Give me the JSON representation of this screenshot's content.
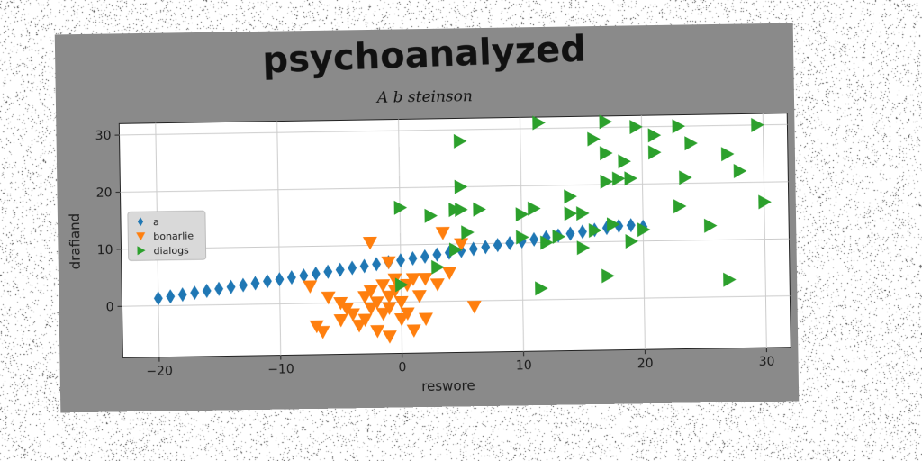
{
  "chart_data": {
    "type": "scatter",
    "title": "psychoanalyzed",
    "subtitle": "A b steinson",
    "xlabel": "reswore",
    "ylabel": "drafiand",
    "xlim": [
      -23,
      32
    ],
    "ylim": [
      -9,
      32
    ],
    "xticks": [
      -20,
      -10,
      0,
      10,
      20,
      30
    ],
    "yticks": [
      0,
      10,
      20,
      30
    ],
    "grid": true,
    "legend_position": "center-left",
    "series": [
      {
        "name": "a",
        "color": "#1f77b4",
        "marker": "diamond",
        "x": [
          -20,
          -19,
          -18,
          -17,
          -16,
          -15,
          -14,
          -13,
          -12,
          -11,
          -10,
          -9,
          -8,
          -7,
          -6,
          -5,
          -4,
          -3,
          -2,
          -1,
          0,
          1,
          2,
          3,
          4,
          5,
          6,
          7,
          8,
          9,
          10,
          11,
          12,
          13,
          14,
          15,
          16,
          17,
          18,
          19,
          20
        ],
        "y": [
          1.3,
          1.6,
          1.9,
          2.2,
          2.5,
          2.8,
          3.1,
          3.4,
          3.7,
          4.0,
          4.3,
          4.6,
          4.9,
          5.2,
          5.5,
          5.8,
          6.1,
          6.4,
          6.7,
          7.0,
          7.3,
          7.6,
          7.9,
          8.2,
          8.5,
          8.8,
          9.1,
          9.4,
          9.7,
          10.0,
          10.3,
          10.6,
          10.9,
          11.2,
          11.5,
          11.8,
          12.1,
          12.4,
          12.7,
          12.8,
          12.5
        ]
      },
      {
        "name": "bonarlie",
        "color": "#ff7f0e",
        "marker": "triangle-down",
        "x": [
          -7,
          -6.5,
          -6,
          -5,
          -5,
          -4.5,
          -4,
          -3.5,
          -3,
          -2.5,
          -2.5,
          -2,
          -2,
          -1.5,
          -1.5,
          -1,
          -1,
          -1,
          -0.5,
          0,
          0,
          0.5,
          1,
          1,
          1.5,
          2,
          2,
          3,
          3.5,
          4,
          5,
          6,
          -2.5,
          -1,
          0.5,
          -7.5,
          -3,
          -0.5
        ],
        "y": [
          -4,
          -5,
          1,
          0,
          -3,
          -1,
          -2,
          -4,
          1,
          -1,
          10.5,
          0,
          -5,
          3,
          -2,
          7,
          -1,
          -6,
          2,
          0,
          -3,
          3,
          -5,
          4,
          1,
          4,
          -3,
          3,
          12,
          5,
          10,
          -1,
          2,
          1,
          -2,
          3,
          -3,
          4
        ]
      },
      {
        "name": "dialogs",
        "color": "#2ca02c",
        "marker": "triangle-right",
        "x": [
          5,
          11.5,
          17,
          19.5,
          21,
          23,
          29.5,
          16,
          17,
          18.5,
          21,
          24,
          27,
          5,
          5,
          17,
          18,
          19,
          23,
          23.5,
          28,
          0,
          2.5,
          4.5,
          5.5,
          6.5,
          10,
          11,
          14,
          14,
          15,
          16,
          17.5,
          30,
          25.5,
          10,
          12,
          15,
          19,
          4.5,
          3,
          17,
          11.5,
          27,
          0,
          13,
          20
        ],
        "y": [
          28,
          31,
          31,
          30,
          28.5,
          30,
          30,
          28,
          25.5,
          24,
          25.5,
          27,
          25,
          20,
          16,
          20.5,
          21,
          21,
          16,
          21,
          22,
          16.5,
          15,
          16,
          12,
          16,
          15,
          16,
          15,
          18,
          15,
          12,
          13,
          16.5,
          12.5,
          11,
          10,
          9,
          10,
          9,
          6,
          4,
          2,
          3,
          3,
          11,
          12
        ]
      }
    ]
  }
}
